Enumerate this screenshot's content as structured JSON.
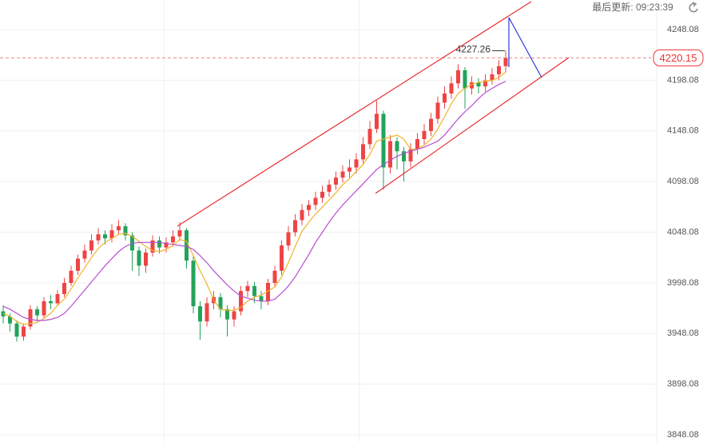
{
  "header": {
    "last_updated": "最后更新: 09:23:39"
  },
  "chart_data": {
    "type": "candlestick",
    "up_color": "#ee4444",
    "down_color": "#23a35a",
    "ylim": [
      3841,
      4277.3
    ],
    "yticks": [
      3848.08,
      3898.08,
      3948.08,
      3998.08,
      4048.08,
      4098.08,
      4148.08,
      4198.08,
      4248.08
    ],
    "grid": true,
    "open": [
      3970,
      3965,
      3958,
      3945,
      3955,
      3972,
      3966,
      3980,
      3978,
      3987,
      3998,
      4010,
      4022,
      4030,
      4040,
      4046,
      4042,
      4050,
      4054,
      4045,
      4030,
      4015,
      4028,
      4040,
      4033,
      4038,
      4044,
      4050,
      4020,
      3975,
      3960,
      3978,
      3984,
      3972,
      3962,
      3970,
      3990,
      3995,
      3985,
      3980,
      3998,
      4010,
      4035,
      4048,
      4060,
      4070,
      4075,
      4082,
      4088,
      4095,
      4102,
      4108,
      4112,
      4120,
      4135,
      4150,
      4165,
      4112,
      4138,
      4128,
      4118,
      4130,
      4140,
      4148,
      4160,
      4176,
      4185,
      4195,
      4208,
      4190,
      4196,
      4192,
      4198,
      4204,
      4212
    ],
    "high": [
      3976,
      3968,
      3961,
      3958,
      3976,
      3975,
      3984,
      3986,
      3991,
      4003,
      4015,
      4026,
      4036,
      4046,
      4052,
      4050,
      4056,
      4060,
      4057,
      4048,
      4034,
      4032,
      4045,
      4044,
      4043,
      4050,
      4058,
      4052,
      4024,
      3980,
      3984,
      3990,
      3988,
      3976,
      3975,
      3995,
      4000,
      3999,
      3990,
      4002,
      4015,
      4040,
      4054,
      4066,
      4076,
      4080,
      4088,
      4094,
      4100,
      4108,
      4114,
      4120,
      4126,
      4142,
      4158,
      4178,
      4168,
      4144,
      4142,
      4132,
      4136,
      4146,
      4155,
      4166,
      4182,
      4192,
      4202,
      4214,
      4211,
      4202,
      4200,
      4204,
      4210,
      4218,
      4227.26
    ],
    "low": [
      3958,
      3950,
      3940,
      3941,
      3952,
      3960,
      3963,
      3972,
      3975,
      3984,
      3995,
      4006,
      4018,
      4026,
      4036,
      4036,
      4038,
      4046,
      4040,
      4010,
      4005,
      4008,
      4024,
      4027,
      4028,
      4034,
      4040,
      4012,
      3968,
      3942,
      3955,
      3972,
      3964,
      3945,
      3955,
      3966,
      3984,
      3978,
      3972,
      3976,
      3994,
      4006,
      4030,
      4044,
      4055,
      4064,
      4070,
      4077,
      4083,
      4090,
      4097,
      4102,
      4106,
      4116,
      4130,
      4146,
      4090,
      4106,
      4110,
      4098,
      4112,
      4125,
      4135,
      4143,
      4155,
      4170,
      4180,
      4190,
      4170,
      4184,
      4185,
      4187,
      4194,
      4198,
      4206
    ],
    "close": [
      3965,
      3958,
      3945,
      3955,
      3972,
      3966,
      3980,
      3978,
      3987,
      3998,
      4010,
      4022,
      4030,
      4040,
      4046,
      4042,
      4050,
      4054,
      4045,
      4030,
      4015,
      4028,
      4040,
      4033,
      4038,
      4044,
      4050,
      4020,
      3975,
      3960,
      3978,
      3984,
      3972,
      3962,
      3970,
      3990,
      3995,
      3985,
      3980,
      3998,
      4010,
      4035,
      4048,
      4060,
      4070,
      4075,
      4082,
      4088,
      4095,
      4102,
      4108,
      4112,
      4120,
      4135,
      4150,
      4165,
      4112,
      4138,
      4128,
      4118,
      4130,
      4140,
      4148,
      4160,
      4176,
      4185,
      4195,
      4208,
      4190,
      4196,
      4192,
      4198,
      4204,
      4212,
      4220.15
    ],
    "lines": [
      {
        "color": "#f0b429",
        "values": [
          3968,
          3965,
          3960,
          3957,
          3958,
          3959,
          3963,
          3968,
          3976,
          3982,
          3992,
          4003,
          4013,
          4023,
          4032,
          4038,
          4042,
          4046,
          4047,
          4044,
          4039,
          4034,
          4030,
          4029,
          4031,
          4035,
          4041,
          4039,
          4025,
          4010,
          3997,
          3981,
          3972,
          3971,
          3971,
          3974,
          3980,
          3984,
          3986,
          3990,
          3994,
          4004,
          4018,
          4034,
          4049,
          4058,
          4066,
          4073,
          4080,
          4087,
          4095,
          4101,
          4108,
          4115,
          4125,
          4138,
          4140,
          4142,
          4144,
          4140,
          4130,
          4130,
          4134,
          4140,
          4150,
          4162,
          4175,
          4185,
          4190,
          4194,
          4196,
          4197,
          4198,
          4201,
          4206
        ]
      },
      {
        "color": "#b84fd0",
        "values": [
          3975,
          3972,
          3968,
          3964,
          3962,
          3961,
          3961,
          3962,
          3964,
          3968,
          3975,
          3983,
          3991,
          3999,
          4007,
          4015,
          4022,
          4029,
          4034,
          4037,
          4038,
          4038,
          4038,
          4038,
          4037,
          4036,
          4035,
          4034,
          4031,
          4025,
          4018,
          4010,
          4003,
          3996,
          3990,
          3985,
          3983,
          3981,
          3980,
          3980,
          3982,
          3988,
          3995,
          4004,
          4015,
          4026,
          4038,
          4048,
          4058,
          4067,
          4075,
          4082,
          4089,
          4096,
          4103,
          4110,
          4115,
          4119,
          4123,
          4126,
          4128,
          4130,
          4132,
          4135,
          4138,
          4144,
          4152,
          4160,
          4167,
          4173,
          4180,
          4186,
          4190,
          4194,
          4197
        ]
      }
    ]
  }
}
